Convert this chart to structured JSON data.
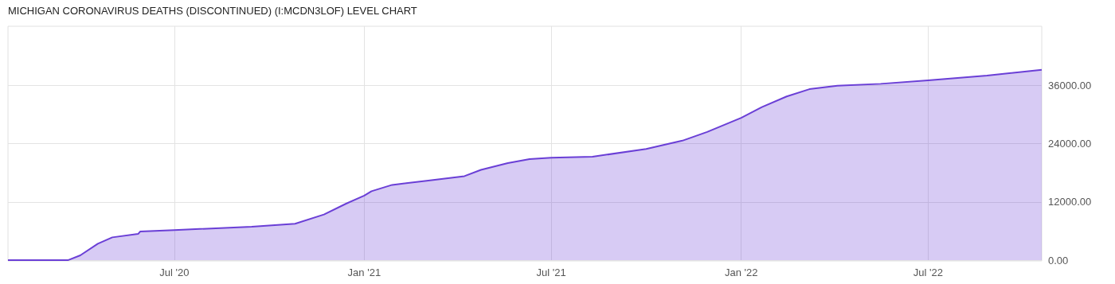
{
  "chart_data": {
    "type": "area",
    "title": "MICHIGAN CORONAVIRUS DEATHS (DISCONTINUED) (I:MCDN3LOF) LEVEL CHART",
    "x": [
      "2020-01-22",
      "2020-03-20",
      "2020-04-01",
      "2020-04-18",
      "2020-05-02",
      "2020-05-27",
      "2020-05-29",
      "2020-07-01",
      "2020-09-14",
      "2020-10-26",
      "2020-11-23",
      "2020-12-14",
      "2021-01-01",
      "2021-01-08",
      "2021-01-28",
      "2021-03-04",
      "2021-04-08",
      "2021-04-24",
      "2021-05-20",
      "2021-06-10",
      "2021-07-01",
      "2021-08-10",
      "2021-10-01",
      "2021-11-05",
      "2021-11-29",
      "2022-01-01",
      "2022-01-21",
      "2022-02-14",
      "2022-03-08",
      "2022-04-04",
      "2022-05-16",
      "2022-07-01",
      "2022-08-27",
      "2022-10-19"
    ],
    "series": [
      {
        "color": "#6a3fd6",
        "values": [
          0,
          0,
          1000,
          3400,
          4700,
          5400,
          5900,
          6200,
          6900,
          7500,
          9400,
          11600,
          13300,
          14200,
          15500,
          16400,
          17300,
          18600,
          20000,
          20800,
          21100,
          21300,
          22900,
          24600,
          26400,
          29300,
          31500,
          33700,
          35200,
          35900,
          36300,
          37000,
          38000,
          39200
        ]
      }
    ],
    "xlim": [
      "2020-01-22",
      "2022-10-19"
    ],
    "xticks": [
      {
        "value": "2020-07-01",
        "label": "Jul '20"
      },
      {
        "value": "2021-01-01",
        "label": "Jan '21"
      },
      {
        "value": "2021-07-01",
        "label": "Jul '21"
      },
      {
        "value": "2022-01-01",
        "label": "Jan '22"
      },
      {
        "value": "2022-07-01",
        "label": "Jul '22"
      }
    ],
    "ylim": [
      -150,
      48150
    ],
    "yticks": [
      {
        "value": 0,
        "label": "0.00"
      },
      {
        "value": 12000,
        "label": "12000.00"
      },
      {
        "value": 24000,
        "label": "24000.00"
      },
      {
        "value": 36000,
        "label": "36000.00"
      }
    ],
    "grid": true,
    "marker": "none",
    "line_style": "solid"
  }
}
